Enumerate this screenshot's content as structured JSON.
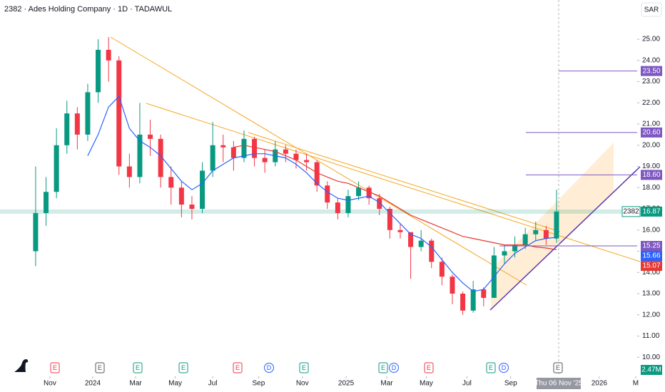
{
  "chart_data": {
    "type": "candlestick",
    "title": "2382 · Ades Holding Company · 1D · TADAWUL",
    "currency": "SAR",
    "up_color": "#089981",
    "down_color": "#f23645",
    "open": [
      15.0,
      16.8,
      17.8,
      20.0,
      21.5,
      20.5,
      22.5,
      24.5,
      24.0,
      19.0,
      18.5,
      20.5,
      20.3,
      18.5,
      18.0,
      17.2,
      17.0,
      18.8,
      20.0,
      19.9,
      19.4,
      20.3,
      19.4,
      19.2,
      19.8,
      19.6,
      19.3,
      19.2,
      18.1,
      17.3,
      16.8,
      17.6,
      18.0,
      17.5,
      17.0,
      16.0,
      15.9,
      15.2,
      15.5,
      14.5,
      13.8,
      13.0,
      12.2,
      13.2,
      12.8,
      14.8,
      15.0,
      15.3,
      15.8,
      16.0,
      15.6
    ],
    "high": [
      19.0,
      18.5,
      20.8,
      22.1,
      21.8,
      22.9,
      25.0,
      25.1,
      24.2,
      19.6,
      22.0,
      21.2,
      20.5,
      19.0,
      18.3,
      17.6,
      19.2,
      21.1,
      20.5,
      20.2,
      20.7,
      20.4,
      19.8,
      20.2,
      20.0,
      19.8,
      19.6,
      19.3,
      18.3,
      17.5,
      17.9,
      18.3,
      18.1,
      17.7,
      17.1,
      16.3,
      15.9,
      16.0,
      15.6,
      14.7,
      13.9,
      13.1,
      13.6,
      13.3,
      15.2,
      15.3,
      15.7,
      16.1,
      16.4,
      16.2,
      17.9
    ],
    "low": [
      14.3,
      16.2,
      17.5,
      19.6,
      19.8,
      20.2,
      22.0,
      23.0,
      18.6,
      18.0,
      18.2,
      19.5,
      18.0,
      17.2,
      16.6,
      16.5,
      16.8,
      18.5,
      19.2,
      18.8,
      19.2,
      19.0,
      18.7,
      19.0,
      19.2,
      18.9,
      18.8,
      17.8,
      17.0,
      16.5,
      16.6,
      17.4,
      17.2,
      16.7,
      15.6,
      15.6,
      13.7,
      15.0,
      14.2,
      13.4,
      12.5,
      12.0,
      12.1,
      12.4,
      12.8,
      14.4,
      14.7,
      15.1,
      15.5,
      15.3,
      15.4
    ],
    "close": [
      16.8,
      17.8,
      20.0,
      21.5,
      20.5,
      22.5,
      24.5,
      24.0,
      19.0,
      18.5,
      20.5,
      20.3,
      18.5,
      18.0,
      17.2,
      17.0,
      18.8,
      20.0,
      19.9,
      19.4,
      20.3,
      19.4,
      19.2,
      19.8,
      19.6,
      19.3,
      19.2,
      18.1,
      17.3,
      16.8,
      17.6,
      18.0,
      17.5,
      17.0,
      16.0,
      15.9,
      15.2,
      15.5,
      14.5,
      13.8,
      13.0,
      12.2,
      13.2,
      12.8,
      14.8,
      15.0,
      15.3,
      15.8,
      16.0,
      15.6,
      16.87
    ],
    "series": [
      {
        "color": "#2962ff",
        "values": [
          null,
          null,
          null,
          null,
          null,
          19.5,
          20.5,
          21.8,
          22.3,
          20.8,
          20.2,
          19.9,
          19.5,
          18.9,
          18.3,
          17.9,
          18.2,
          18.8,
          19.1,
          19.4,
          19.5,
          19.6,
          19.6,
          19.5,
          19.4,
          19.1,
          18.7,
          18.2,
          17.8,
          17.5,
          17.4,
          17.5,
          17.6,
          17.3,
          16.8,
          16.3,
          15.8,
          15.6,
          15.2,
          14.6,
          14.0,
          13.5,
          13.1,
          13.2,
          13.8,
          14.4,
          14.9,
          15.2,
          15.5,
          15.6,
          15.66
        ]
      },
      {
        "color": "#e53935",
        "values": [
          null,
          null,
          null,
          null,
          null,
          null,
          null,
          null,
          null,
          null,
          null,
          null,
          null,
          null,
          null,
          null,
          null,
          null,
          null,
          19.9,
          20.0,
          19.9,
          19.8,
          19.7,
          19.5,
          19.3,
          19.0,
          18.7,
          18.5,
          18.3,
          18.2,
          18.0,
          17.8,
          17.6,
          17.3,
          17.0,
          16.7,
          16.5,
          16.3,
          16.1,
          15.9,
          15.7,
          15.6,
          15.5,
          15.4,
          15.3,
          15.3,
          15.3,
          15.2,
          15.15,
          15.07
        ]
      }
    ],
    "ylim": [
      9.1,
      26.85
    ],
    "yticks": [
      {
        "value": 10,
        "label": "10.00"
      },
      {
        "value": 11,
        "label": "11.00"
      },
      {
        "value": 12,
        "label": "12.00"
      },
      {
        "value": 13,
        "label": "13.00"
      },
      {
        "value": 14,
        "label": "14.00"
      },
      {
        "value": 15,
        "label": "15.00"
      },
      {
        "value": 16,
        "label": "16.00"
      },
      {
        "value": 17,
        "label": "17.00"
      },
      {
        "value": 18,
        "label": "18.00"
      },
      {
        "value": 19,
        "label": "19.00"
      },
      {
        "value": 20,
        "label": "20.00"
      },
      {
        "value": 21,
        "label": "21.00"
      },
      {
        "value": 22,
        "label": "22.00"
      },
      {
        "value": 23,
        "label": "23.00"
      },
      {
        "value": 24,
        "label": "24.00"
      },
      {
        "value": 25,
        "label": "25.00"
      }
    ],
    "xlim": [
      -3.42,
      57.74
    ],
    "xticks": [
      {
        "value": 1.37,
        "label": "Nov"
      },
      {
        "value": 5.48,
        "label": "2024"
      },
      {
        "value": 9.6,
        "label": "Mar"
      },
      {
        "value": 13.4,
        "label": "May"
      },
      {
        "value": 17.0,
        "label": "Jul"
      },
      {
        "value": 21.4,
        "label": "Sep"
      },
      {
        "value": 25.6,
        "label": "Nov"
      },
      {
        "value": 29.8,
        "label": "2025"
      },
      {
        "value": 33.7,
        "label": "Mar"
      },
      {
        "value": 37.5,
        "label": "May"
      },
      {
        "value": 41.4,
        "label": "Jul"
      },
      {
        "value": 45.6,
        "label": "Sep"
      },
      {
        "value": 54.1,
        "label": "2026"
      },
      {
        "value": 57.6,
        "label": "M"
      }
    ],
    "cursor_label": "Thu 06 Nov '25",
    "levels": [
      {
        "value": 23.5,
        "label": "23.50",
        "color": "#7e57c2"
      },
      {
        "value": 20.6,
        "label": "20.60",
        "color": "#7e57c2"
      },
      {
        "value": 18.6,
        "label": "18.60",
        "color": "#7e57c2"
      },
      {
        "value": 15.25,
        "label": "15.25",
        "color": "#7e57c2"
      }
    ],
    "last_price": {
      "symbol": "2382",
      "value": 16.87,
      "label": "16.87",
      "color": "#089981"
    },
    "ma_labels": [
      "15.66",
      "15.07"
    ],
    "volume_label": "2.47M",
    "events": [
      {
        "label": "E",
        "color": "#f23645"
      },
      {
        "label": "E",
        "color": "#555"
      },
      {
        "label": "E",
        "color": "#089981"
      },
      {
        "label": "E",
        "color": "#089981"
      },
      {
        "label": "E",
        "color": "#f23645"
      },
      {
        "label": "D",
        "color": "#2962ff"
      },
      {
        "label": "E",
        "color": "#089981"
      },
      {
        "label": "E",
        "color": "#089981"
      },
      {
        "label": "D",
        "color": "#2962ff"
      },
      {
        "label": "E",
        "color": "#f23645"
      },
      {
        "label": "E",
        "color": "#089981"
      },
      {
        "label": "D",
        "color": "#2962ff"
      },
      {
        "label": "E",
        "color": "#555"
      }
    ]
  }
}
